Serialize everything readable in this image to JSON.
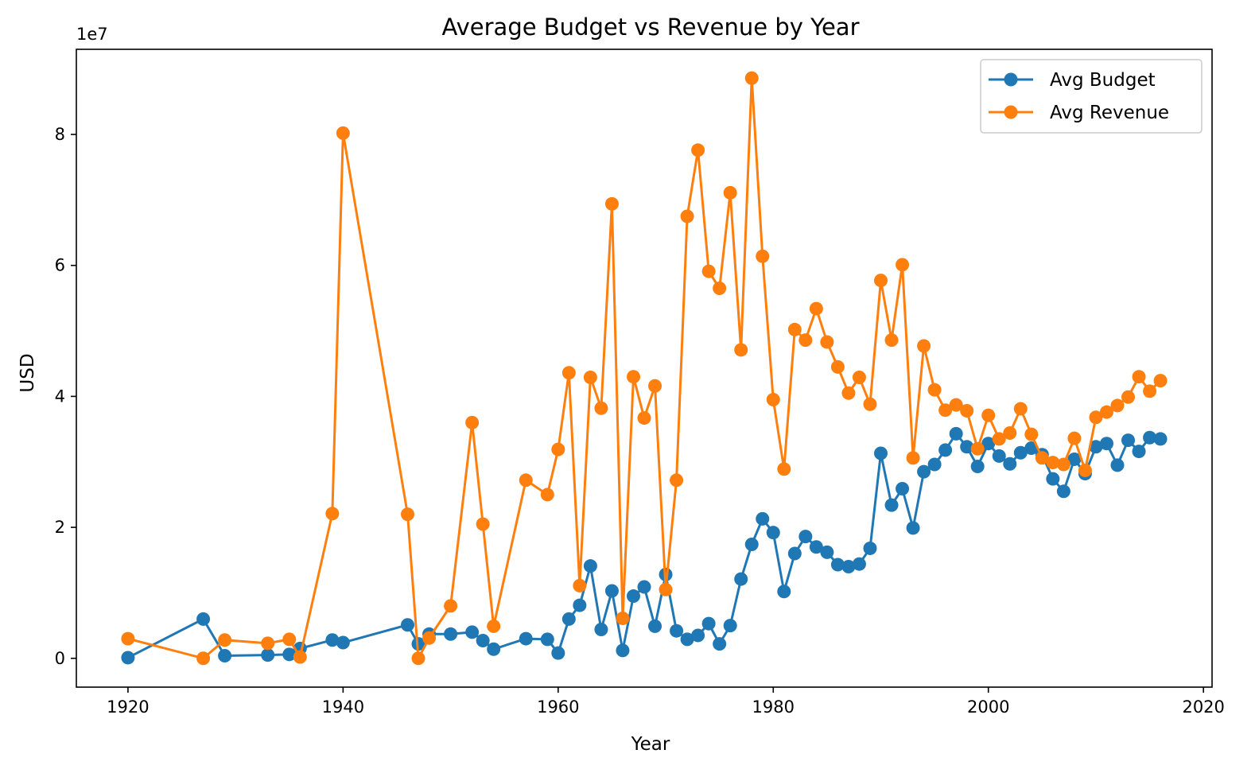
{
  "chart_data": {
    "type": "line",
    "title": "Average Budget vs Revenue by Year",
    "xlabel": "Year",
    "ylabel": "USD",
    "y_offset_text": "1e7",
    "xlim": [
      1915.2,
      2020.8
    ],
    "ylim": [
      -0.44,
      9.3
    ],
    "xticks": [
      1920,
      1940,
      1960,
      1980,
      2000,
      2020
    ],
    "xtick_labels": [
      "1920",
      "1940",
      "1960",
      "1980",
      "2000",
      "2020"
    ],
    "yticks": [
      0,
      2,
      4,
      6,
      8
    ],
    "ytick_labels": [
      "0",
      "2",
      "4",
      "6",
      "8"
    ],
    "legend": {
      "location": "top-right",
      "entries": [
        "Avg Budget",
        "Avg Revenue"
      ]
    },
    "grid": false,
    "series": [
      {
        "name": "Avg Budget",
        "color": "#1f77b4",
        "points": [
          [
            1920,
            0.01
          ],
          [
            1927,
            0.6
          ],
          [
            1929,
            0.04
          ],
          [
            1933,
            0.05
          ],
          [
            1935,
            0.06
          ],
          [
            1936,
            0.15
          ],
          [
            1939,
            0.28
          ],
          [
            1940,
            0.24
          ],
          [
            1946,
            0.51
          ],
          [
            1947,
            0.22
          ],
          [
            1948,
            0.37
          ],
          [
            1950,
            0.37
          ],
          [
            1952,
            0.4
          ],
          [
            1953,
            0.27
          ],
          [
            1954,
            0.14
          ],
          [
            1957,
            0.3
          ],
          [
            1959,
            0.29
          ],
          [
            1960,
            0.08
          ],
          [
            1961,
            0.6
          ],
          [
            1962,
            0.81
          ],
          [
            1963,
            1.41
          ],
          [
            1964,
            0.44
          ],
          [
            1965,
            1.03
          ],
          [
            1966,
            0.12
          ],
          [
            1967,
            0.95
          ],
          [
            1968,
            1.09
          ],
          [
            1969,
            0.49
          ],
          [
            1970,
            1.28
          ],
          [
            1971,
            0.42
          ],
          [
            1972,
            0.29
          ],
          [
            1973,
            0.35
          ],
          [
            1974,
            0.53
          ],
          [
            1975,
            0.22
          ],
          [
            1976,
            0.5
          ],
          [
            1977,
            1.21
          ],
          [
            1978,
            1.74
          ],
          [
            1979,
            2.13
          ],
          [
            1980,
            1.92
          ],
          [
            1981,
            1.02
          ],
          [
            1982,
            1.6
          ],
          [
            1983,
            1.86
          ],
          [
            1984,
            1.7
          ],
          [
            1985,
            1.62
          ],
          [
            1986,
            1.43
          ],
          [
            1987,
            1.4
          ],
          [
            1988,
            1.44
          ],
          [
            1989,
            1.68
          ],
          [
            1990,
            3.13
          ],
          [
            1991,
            2.34
          ],
          [
            1992,
            2.59
          ],
          [
            1993,
            1.99
          ],
          [
            1994,
            2.85
          ],
          [
            1995,
            2.96
          ],
          [
            1996,
            3.18
          ],
          [
            1997,
            3.43
          ],
          [
            1998,
            3.23
          ],
          [
            1999,
            2.93
          ],
          [
            2000,
            3.28
          ],
          [
            2001,
            3.09
          ],
          [
            2002,
            2.97
          ],
          [
            2003,
            3.14
          ],
          [
            2004,
            3.21
          ],
          [
            2005,
            3.11
          ],
          [
            2006,
            2.74
          ],
          [
            2007,
            2.55
          ],
          [
            2008,
            3.04
          ],
          [
            2009,
            2.82
          ],
          [
            2010,
            3.23
          ],
          [
            2011,
            3.28
          ],
          [
            2012,
            2.95
          ],
          [
            2013,
            3.33
          ],
          [
            2014,
            3.16
          ],
          [
            2015,
            3.37
          ],
          [
            2016,
            3.35
          ]
        ]
      },
      {
        "name": "Avg Revenue",
        "color": "#ff7f0e",
        "points": [
          [
            1920,
            0.3
          ],
          [
            1927,
            0.0
          ],
          [
            1929,
            0.28
          ],
          [
            1933,
            0.23
          ],
          [
            1935,
            0.29
          ],
          [
            1936,
            0.02
          ],
          [
            1939,
            2.21
          ],
          [
            1940,
            8.02
          ],
          [
            1946,
            2.2
          ],
          [
            1947,
            0.0
          ],
          [
            1948,
            0.31
          ],
          [
            1950,
            0.8
          ],
          [
            1952,
            3.6
          ],
          [
            1953,
            2.05
          ],
          [
            1954,
            0.49
          ],
          [
            1957,
            2.72
          ],
          [
            1959,
            2.5
          ],
          [
            1960,
            3.19
          ],
          [
            1961,
            4.36
          ],
          [
            1962,
            1.11
          ],
          [
            1963,
            4.29
          ],
          [
            1964,
            3.82
          ],
          [
            1965,
            6.94
          ],
          [
            1966,
            0.61
          ],
          [
            1967,
            4.3
          ],
          [
            1968,
            3.67
          ],
          [
            1969,
            4.16
          ],
          [
            1970,
            1.05
          ],
          [
            1971,
            2.72
          ],
          [
            1972,
            6.75
          ],
          [
            1973,
            7.76
          ],
          [
            1974,
            5.91
          ],
          [
            1975,
            5.65
          ],
          [
            1976,
            7.11
          ],
          [
            1977,
            4.71
          ],
          [
            1978,
            8.86
          ],
          [
            1979,
            6.14
          ],
          [
            1980,
            3.95
          ],
          [
            1981,
            2.89
          ],
          [
            1982,
            5.02
          ],
          [
            1983,
            4.86
          ],
          [
            1984,
            5.34
          ],
          [
            1985,
            4.83
          ],
          [
            1986,
            4.45
          ],
          [
            1987,
            4.05
          ],
          [
            1988,
            4.29
          ],
          [
            1989,
            3.88
          ],
          [
            1990,
            5.77
          ],
          [
            1991,
            4.86
          ],
          [
            1992,
            6.01
          ],
          [
            1993,
            3.06
          ],
          [
            1994,
            4.77
          ],
          [
            1995,
            4.1
          ],
          [
            1996,
            3.79
          ],
          [
            1997,
            3.87
          ],
          [
            1998,
            3.78
          ],
          [
            1999,
            3.2
          ],
          [
            2000,
            3.71
          ],
          [
            2001,
            3.35
          ],
          [
            2002,
            3.44
          ],
          [
            2003,
            3.81
          ],
          [
            2004,
            3.42
          ],
          [
            2005,
            3.06
          ],
          [
            2006,
            2.99
          ],
          [
            2007,
            2.96
          ],
          [
            2008,
            3.36
          ],
          [
            2009,
            2.87
          ],
          [
            2010,
            3.68
          ],
          [
            2011,
            3.76
          ],
          [
            2012,
            3.86
          ],
          [
            2013,
            3.99
          ],
          [
            2014,
            4.3
          ],
          [
            2015,
            4.08
          ],
          [
            2016,
            4.24
          ]
        ]
      }
    ]
  }
}
